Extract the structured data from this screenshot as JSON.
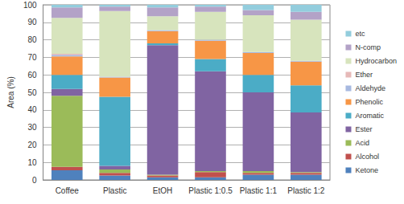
{
  "chart_data": {
    "type": "bar",
    "stacked": true,
    "y_label": "Area (%)",
    "categories": [
      "Coffee",
      "Plastic",
      "EtOH",
      "Plastic 1:0.5",
      "Plastic 1:1",
      "Plastic 1:2"
    ],
    "ylim": [
      0,
      100
    ],
    "yticks": [
      0,
      10,
      20,
      30,
      40,
      50,
      60,
      70,
      80,
      90,
      100
    ],
    "grid": true,
    "legend": "right",
    "series": [
      {
        "name": "Ketone",
        "color": "#4f81bd",
        "values": [
          5.5,
          2.5,
          1.5,
          1.5,
          3,
          3
        ]
      },
      {
        "name": "Alcohol",
        "color": "#c0504d",
        "values": [
          2,
          1.5,
          1,
          3,
          1,
          1
        ]
      },
      {
        "name": "Acid",
        "color": "#9bbb59",
        "values": [
          40.5,
          2,
          0.5,
          0.5,
          1,
          0.5
        ]
      },
      {
        "name": "Ester",
        "color": "#8064a2",
        "values": [
          4,
          2,
          74,
          57,
          45,
          34
        ]
      },
      {
        "name": "Aromatic",
        "color": "#4bacc6",
        "values": [
          8,
          39.5,
          1,
          7,
          10,
          15.5
        ]
      },
      {
        "name": "Phenolic",
        "color": "#f79646",
        "values": [
          10.5,
          11,
          7,
          10.5,
          12.5,
          13.5
        ]
      },
      {
        "name": "Aldehyde",
        "color": "#a7b9e0",
        "values": [
          1,
          0.5,
          0.5,
          0.5,
          0.5,
          0.5
        ]
      },
      {
        "name": "Ether",
        "color": "#e6b9b8",
        "values": [
          0.5,
          0,
          0,
          0,
          0,
          0
        ]
      },
      {
        "name": "Hydrocarbon",
        "color": "#d7e4bd",
        "values": [
          20.5,
          37.5,
          8,
          16,
          21,
          23.5
        ]
      },
      {
        "name": "N-comp",
        "color": "#b3a2c7",
        "values": [
          6,
          2.5,
          5,
          3,
          3,
          4.5
        ]
      },
      {
        "name": "etc",
        "color": "#93cddd",
        "values": [
          1.5,
          1,
          1.5,
          1,
          3,
          4
        ]
      }
    ]
  }
}
